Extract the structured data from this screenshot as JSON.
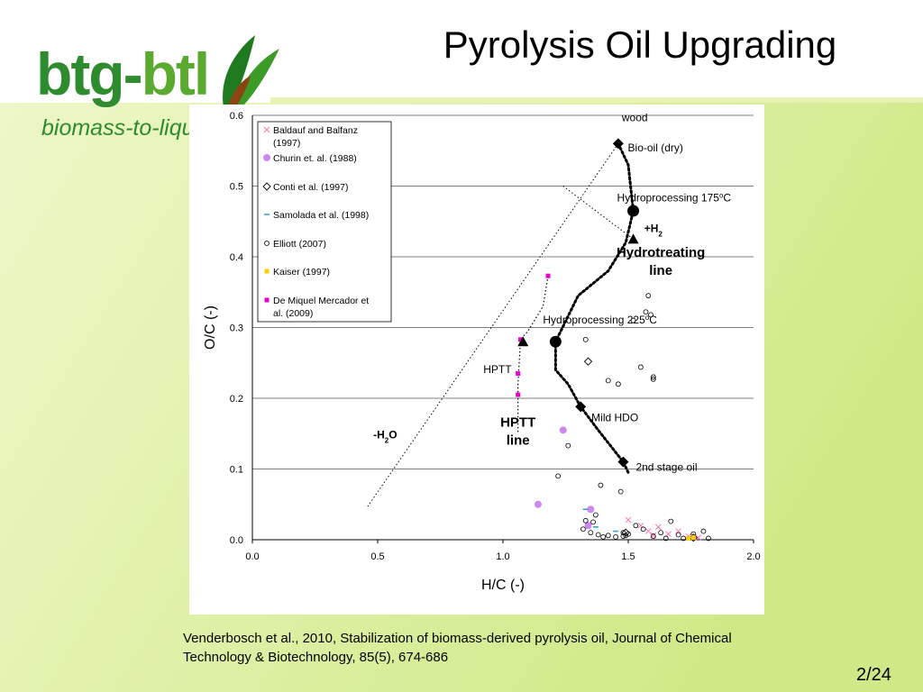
{
  "slide": {
    "title": "Pyrolysis Oil Upgrading",
    "logo": {
      "part1": "btg-",
      "part2": "btl",
      "subtitle": "biomass-to-liquid"
    },
    "citation": "Venderbosch et al., 2010, Stabilization of biomass-derived pyrolysis oil, Journal of Chemical Technology & Biotechnology, 85(5), 674-686",
    "page_number": "2/24",
    "colors": {
      "background_green": "#d4ec8e",
      "logo_dark_green": "#2e8b2e",
      "logo_light_green": "#5aaa30"
    }
  },
  "chart_data": {
    "type": "scatter",
    "xlabel": "H/C (-)",
    "ylabel": "O/C (-)",
    "xlim": [
      0,
      2
    ],
    "ylim": [
      0,
      0.6
    ],
    "xticks": [
      "0.0",
      "0.5",
      "1.0",
      "1.5",
      "2.0"
    ],
    "yticks": [
      "0.0",
      "0.1",
      "0.2",
      "0.3",
      "0.4",
      "0.5",
      "0.6"
    ],
    "grid": "horizontal",
    "legend_position": "top-left",
    "series": [
      {
        "name": "Baldauf and Balfanz (1997)",
        "marker": "x",
        "color": "#ff77bb",
        "points": [
          [
            1.5,
            0.028
          ],
          [
            1.55,
            0.02
          ],
          [
            1.58,
            0.012
          ],
          [
            1.62,
            0.018
          ],
          [
            1.66,
            0.008
          ],
          [
            1.7,
            0.012
          ],
          [
            1.74,
            0.005
          ],
          [
            1.78,
            0.003
          ],
          [
            1.6,
            0.006
          ]
        ]
      },
      {
        "name": "Churin et. al. (1988)",
        "marker": "circle-filled",
        "color": "#cc88ee",
        "points": [
          [
            1.14,
            0.05
          ],
          [
            1.24,
            0.155
          ],
          [
            1.34,
            0.02
          ],
          [
            1.35,
            0.043
          ]
        ]
      },
      {
        "name": "Conti et al. (1997)",
        "marker": "diamond-open",
        "color": "#000000",
        "points": [
          [
            1.34,
            0.252
          ],
          [
            1.49,
            0.01
          ],
          [
            1.76,
            0.003
          ]
        ]
      },
      {
        "name": "Samolada et al. (1998)",
        "marker": "dash",
        "color": "#3399cc",
        "points": [
          [
            1.33,
            0.043
          ],
          [
            1.37,
            0.018
          ],
          [
            1.45,
            0.012
          ]
        ]
      },
      {
        "name": "Elliott (2007)",
        "marker": "circle-open",
        "color": "#000000",
        "points": [
          [
            1.26,
            0.133
          ],
          [
            1.33,
            0.283
          ],
          [
            1.42,
            0.225
          ],
          [
            1.46,
            0.22
          ],
          [
            1.47,
            0.068
          ],
          [
            1.52,
            0.31
          ],
          [
            1.55,
            0.244
          ],
          [
            1.57,
            0.322
          ],
          [
            1.58,
            0.345
          ],
          [
            1.59,
            0.318
          ],
          [
            1.6,
            0.23
          ],
          [
            1.6,
            0.227
          ],
          [
            1.33,
            0.027
          ],
          [
            1.36,
            0.025
          ],
          [
            1.32,
            0.015
          ],
          [
            1.35,
            0.01
          ],
          [
            1.38,
            0.007
          ],
          [
            1.4,
            0.004
          ],
          [
            1.42,
            0.006
          ],
          [
            1.45,
            0.004
          ],
          [
            1.48,
            0.005
          ],
          [
            1.5,
            0.008
          ],
          [
            1.53,
            0.02
          ],
          [
            1.56,
            0.015
          ],
          [
            1.6,
            0.005
          ],
          [
            1.63,
            0.01
          ],
          [
            1.65,
            0.002
          ],
          [
            1.67,
            0.026
          ],
          [
            1.7,
            0.007
          ],
          [
            1.72,
            0.002
          ],
          [
            1.76,
            0.008
          ],
          [
            1.8,
            0.012
          ],
          [
            1.82,
            0.002
          ],
          [
            1.22,
            0.09
          ],
          [
            1.39,
            0.077
          ],
          [
            1.37,
            0.035
          ],
          [
            1.48,
            0.01
          ],
          [
            1.49,
            0.006
          ]
        ]
      },
      {
        "name": "Kaiser (1997)",
        "marker": "square-filled",
        "color": "#ffcc00",
        "points": [
          [
            1.74,
            0.002
          ],
          [
            1.76,
            0.003
          ]
        ]
      },
      {
        "name": "De Miquel Mercador et al. (2009)",
        "marker": "square-filled",
        "color": "#ee00cc",
        "points": [
          [
            1.06,
            0.205
          ],
          [
            1.06,
            0.235
          ],
          [
            1.07,
            0.283
          ],
          [
            1.18,
            0.373
          ]
        ]
      }
    ],
    "key_points": [
      {
        "label": "wood",
        "marker": "diamond-filled",
        "x": 1.46,
        "y": 0.56
      },
      {
        "label": "Bio-oil (dry)",
        "marker": "circle-filled-large",
        "x": 1.52,
        "y": 0.465
      },
      {
        "label": "Hydroprocessing 175",
        "sup": "o",
        "suffix": "C",
        "marker": "triangle-filled",
        "x": 1.52,
        "y": 0.425
      },
      {
        "label": "Hydroprocessing 225",
        "sup": "o",
        "suffix": "C",
        "marker": "circle-filled-large",
        "x": 1.21,
        "y": 0.28
      },
      {
        "label": "HPTT",
        "marker": "triangle-filled",
        "x": 1.08,
        "y": 0.28
      },
      {
        "label": "Mild HDO",
        "marker": "diamond-filled",
        "x": 1.31,
        "y": 0.188
      },
      {
        "label": "2nd stage oil",
        "marker": "diamond-filled",
        "x": 1.48,
        "y": 0.11
      }
    ],
    "hydrotreating_line": [
      [
        1.46,
        0.56
      ],
      [
        1.5,
        0.53
      ],
      [
        1.52,
        0.465
      ],
      [
        1.49,
        0.42
      ],
      [
        1.42,
        0.38
      ],
      [
        1.3,
        0.345
      ],
      [
        1.21,
        0.28
      ],
      [
        1.21,
        0.24
      ],
      [
        1.26,
        0.22
      ],
      [
        1.31,
        0.188
      ],
      [
        1.38,
        0.155
      ],
      [
        1.48,
        0.11
      ],
      [
        1.5,
        0.095
      ]
    ],
    "hptt_line": [
      [
        1.18,
        0.373
      ],
      [
        1.16,
        0.33
      ],
      [
        1.1,
        0.295
      ],
      [
        1.07,
        0.283
      ],
      [
        1.06,
        0.22
      ],
      [
        1.06,
        0.15
      ]
    ],
    "water_removal_line": [
      [
        1.46,
        0.56
      ],
      [
        0.46,
        0.047
      ]
    ],
    "h2_line": [
      [
        1.24,
        0.5
      ],
      [
        1.52,
        0.425
      ]
    ],
    "annotations": [
      {
        "lines": [
          "Hydrotreating",
          "line"
        ],
        "bold": true,
        "x": 1.63,
        "y": 0.4
      },
      {
        "lines": [
          "HPTT",
          "line"
        ],
        "bold": true,
        "x": 1.06,
        "y": 0.16
      },
      {
        "lines": [
          "-H",
          "2",
          "O"
        ],
        "bold": true,
        "x": 0.53,
        "y": 0.143,
        "type": "subscript"
      },
      {
        "lines": [
          "+H",
          "2"
        ],
        "bold": true,
        "x": 1.6,
        "y": 0.435,
        "type": "subscript"
      }
    ]
  }
}
